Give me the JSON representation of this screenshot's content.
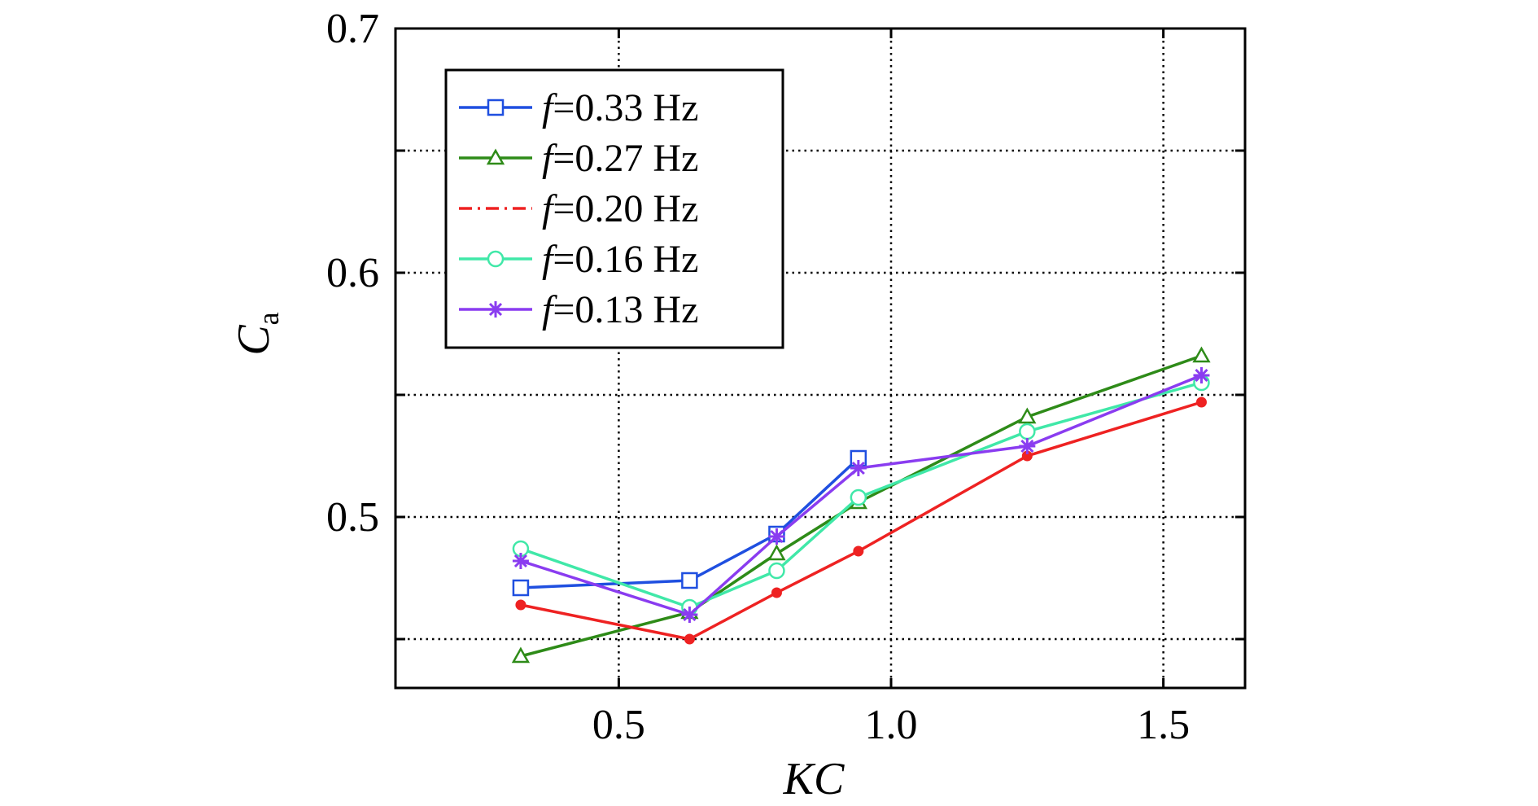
{
  "chart_data": {
    "type": "line",
    "title": "",
    "xlabel": "KC",
    "ylabel": {
      "main": "C",
      "sub": "a"
    },
    "xlim": [
      0.09,
      1.65
    ],
    "ylim": [
      0.43,
      0.7
    ],
    "xticks": [
      0.5,
      1.0,
      1.5
    ],
    "xtick_labels": [
      "0.5",
      "1.0",
      "1.5"
    ],
    "yticks": [
      0.45,
      0.5,
      0.55,
      0.6,
      0.65,
      0.7
    ],
    "ytick_labels": [
      "",
      "0.5",
      "",
      "0.6",
      "",
      "0.7"
    ],
    "grid": true,
    "legend_position": "top-left",
    "series": [
      {
        "name": "f=0.33 Hz",
        "label_var": "f",
        "label_rest": "=0.33 Hz",
        "color": "#1f4fe0",
        "marker": "square",
        "dash": "solid",
        "x": [
          0.32,
          0.63,
          0.79,
          0.94
        ],
        "y": [
          0.471,
          0.474,
          0.493,
          0.524
        ]
      },
      {
        "name": "f=0.27 Hz",
        "label_var": "f",
        "label_rest": "=0.27 Hz",
        "color": "#2e8b18",
        "marker": "triangle",
        "dash": "solid",
        "x": [
          0.32,
          0.63,
          0.79,
          0.94,
          1.25,
          1.57
        ],
        "y": [
          0.443,
          0.461,
          0.485,
          0.506,
          0.541,
          0.566
        ]
      },
      {
        "name": "f=0.20 Hz",
        "label_var": "f",
        "label_rest": "=0.20 Hz",
        "color": "#ee2222",
        "marker": "dot",
        "dash": "solid",
        "legend_dash": "dashdot",
        "x": [
          0.32,
          0.63,
          0.79,
          0.94,
          1.25,
          1.57
        ],
        "y": [
          0.464,
          0.45,
          0.469,
          0.486,
          0.525,
          0.547
        ]
      },
      {
        "name": "f=0.16 Hz",
        "label_var": "f",
        "label_rest": "=0.16 Hz",
        "color": "#40e8a8",
        "marker": "circle",
        "dash": "solid",
        "x": [
          0.32,
          0.63,
          0.79,
          0.94,
          1.25,
          1.57
        ],
        "y": [
          0.487,
          0.463,
          0.478,
          0.508,
          0.535,
          0.555
        ]
      },
      {
        "name": "f=0.13 Hz",
        "label_var": "f",
        "label_rest": "=0.13 Hz",
        "color": "#8a3cf0",
        "marker": "asterisk",
        "dash": "solid",
        "x": [
          0.32,
          0.63,
          0.79,
          0.94,
          1.25,
          1.57
        ],
        "y": [
          0.482,
          0.46,
          0.492,
          0.52,
          0.529,
          0.558
        ]
      }
    ]
  }
}
